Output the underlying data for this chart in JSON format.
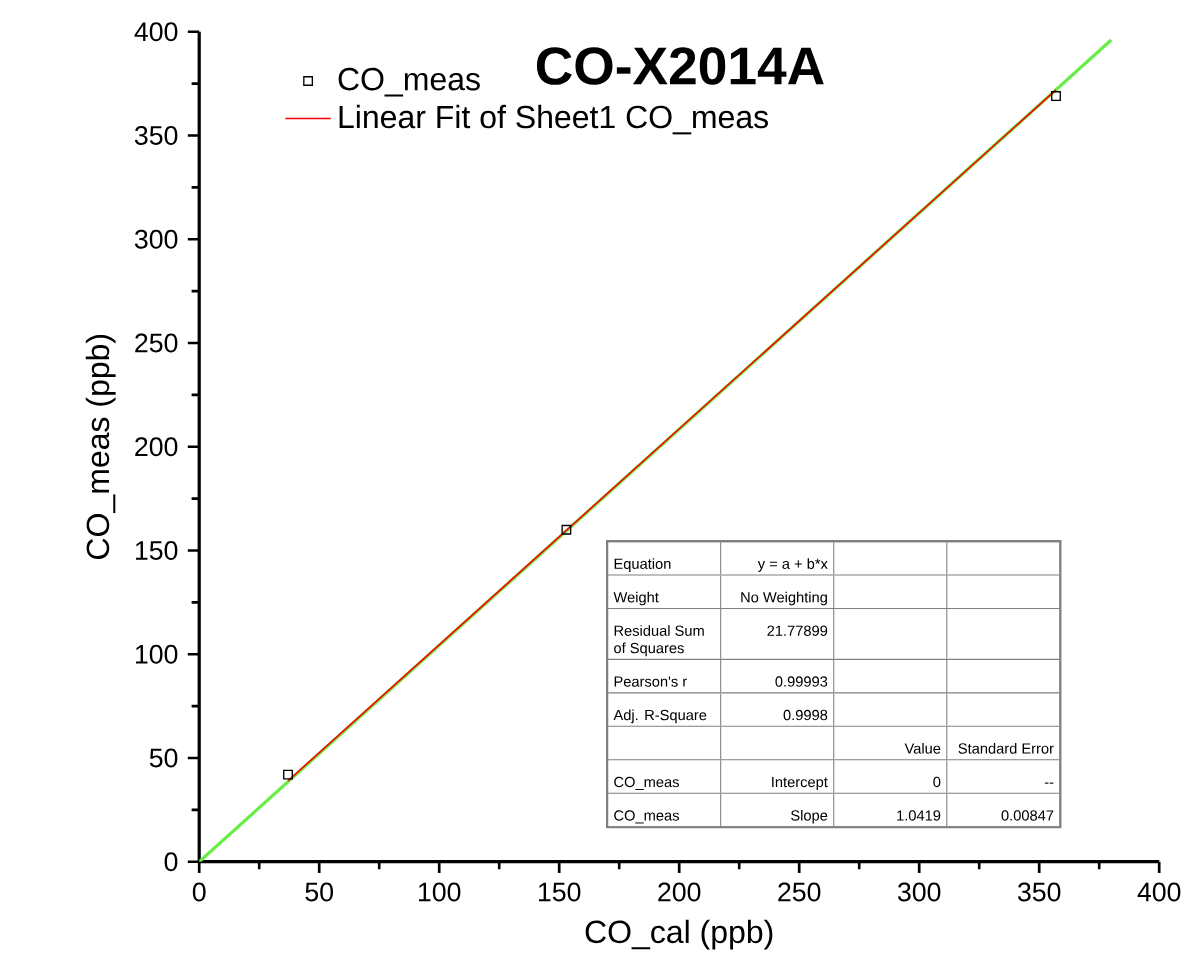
{
  "chart_data": {
    "type": "scatter",
    "title": "CO-X2014A",
    "xlabel": "CO_cal (ppb)",
    "ylabel": "CO_meas (ppb)",
    "xlim": [
      0,
      400
    ],
    "ylim": [
      0,
      400
    ],
    "xticks": [
      0,
      50,
      100,
      150,
      200,
      250,
      300,
      350,
      400
    ],
    "yticks": [
      0,
      50,
      100,
      150,
      200,
      250,
      300,
      350,
      400
    ],
    "legend": "top left",
    "grid": false,
    "series": [
      {
        "name": "CO_meas",
        "marker": "square",
        "color": "#000000",
        "x": [
          37,
          153,
          357
        ],
        "values": [
          42,
          160,
          369
        ]
      },
      {
        "type": "line",
        "line_style": "solid",
        "color": "#66ee44",
        "x": [
          0,
          380
        ],
        "values": [
          0,
          396
        ]
      },
      {
        "name": "Linear Fit of Sheet1 CO_meas",
        "type": "line",
        "line_style": "solid",
        "color": "#ff0000",
        "x": [
          37,
          357
        ],
        "values": [
          39,
          372
        ]
      }
    ],
    "annotations": [
      "Equation",
      "y = a + b*x",
      "Weight",
      "No Weighting",
      "Residual Sum of Squares",
      "21.77899",
      "Pearson's r",
      "0.99993",
      "Adj. R-Square",
      "0.9998",
      "Value",
      "Standard Error",
      "CO_meas",
      "Intercept",
      "0",
      "--",
      "CO_meas",
      "Slope",
      "1.0419",
      "0.00847"
    ]
  }
}
